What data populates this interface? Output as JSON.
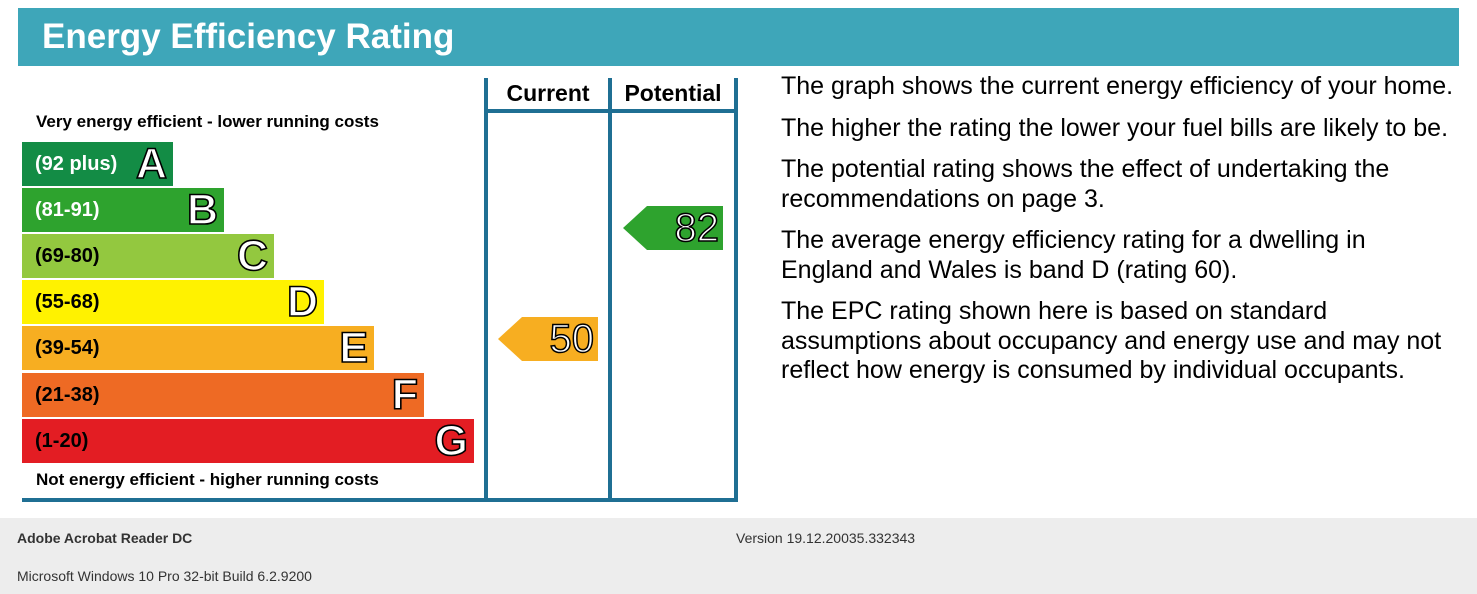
{
  "header": {
    "title": "Energy Efficiency Rating"
  },
  "scale": {
    "top_note": "Very energy efficient - lower running costs",
    "bottom_note": "Not energy efficient - higher running costs",
    "bands": [
      {
        "range": "(92 plus)",
        "letter": "A",
        "color": "#138c45",
        "text_color": "#ffffff"
      },
      {
        "range": "(81-91)",
        "letter": "B",
        "color": "#2ea32e",
        "text_color": "#ffffff"
      },
      {
        "range": "(69-80)",
        "letter": "C",
        "color": "#93c83f",
        "text_color": "#000000"
      },
      {
        "range": "(55-68)",
        "letter": "D",
        "color": "#fff200",
        "text_color": "#000000"
      },
      {
        "range": "(39-54)",
        "letter": "E",
        "color": "#f7ae21",
        "text_color": "#000000"
      },
      {
        "range": "(21-38)",
        "letter": "F",
        "color": "#ee6a24",
        "text_color": "#000000"
      },
      {
        "range": "(1-20)",
        "letter": "G",
        "color": "#e31d23",
        "text_color": "#000000"
      }
    ]
  },
  "columns": {
    "current_label": "Current",
    "potential_label": "Potential",
    "border_color": "#1f6f93"
  },
  "ratings": {
    "current": {
      "value": "50",
      "band": "E",
      "color": "#f7ae21"
    },
    "potential": {
      "value": "82",
      "band": "B",
      "color": "#2ea32e"
    }
  },
  "info": {
    "paragraphs": [
      "The graph shows the current energy efficiency of your home.",
      "The higher the rating the lower your fuel bills are likely to be.",
      "The potential rating shows the effect of undertaking the recommendations on page 3.",
      "The average energy efficiency rating for a dwelling in England and Wales is band D (rating 60).",
      "The EPC rating shown here is based on standard assumptions about occupancy and energy use and may not reflect how energy is consumed by individual occupants."
    ]
  },
  "footer": {
    "app": "Adobe Acrobat Reader DC",
    "version": "Version 19.12.20035.332343",
    "os": "Microsoft Windows 10 Pro 32-bit Build 6.2.9200"
  }
}
